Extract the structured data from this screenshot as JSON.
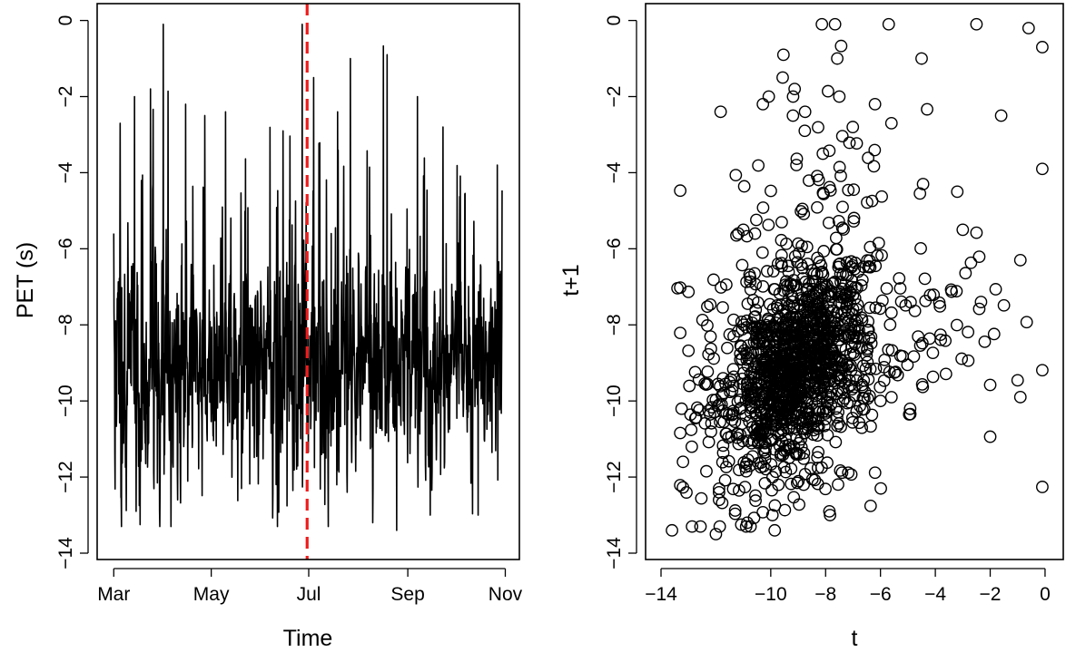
{
  "colors": {
    "line": "#000000",
    "points": "#000000",
    "marker_line": "#ee1c1c",
    "background": "#ffffff"
  },
  "chart_data": [
    {
      "type": "line",
      "xlabel": "Time",
      "ylabel": "PET (s)",
      "x_ticks": [
        "Mar",
        "May",
        "Jul",
        "Sep",
        "Nov"
      ],
      "y_ticks": [
        "0",
        "-2",
        "-4",
        "-6",
        "-8",
        "-10",
        "-12",
        "-14"
      ],
      "xlim": [
        "2021-02-26",
        "2021-11-03"
      ],
      "ylim": [
        -14,
        0.3
      ],
      "grid": false,
      "baseline_mean": -9.0,
      "series": [
        {
          "x_start": "2021-03-01",
          "x_end": "2021-10-30",
          "samples": 1460,
          "peaks": [
            {
              "x": "2021-03-01",
              "y": -5.6
            },
            {
              "x": "2021-03-05",
              "y": -2.7
            },
            {
              "x": "2021-03-14",
              "y": -2.0
            },
            {
              "x": "2021-03-24",
              "y": -1.8
            },
            {
              "x": "2021-04-01",
              "y": -0.1
            },
            {
              "x": "2021-04-15",
              "y": -2.2
            },
            {
              "x": "2021-04-27",
              "y": -2.5
            },
            {
              "x": "2021-05-10",
              "y": -2.4
            },
            {
              "x": "2021-06-15",
              "y": -2.9
            },
            {
              "x": "2021-06-27",
              "y": -0.1
            },
            {
              "x": "2021-07-04",
              "y": -1.5
            },
            {
              "x": "2021-07-19",
              "y": -2.4
            },
            {
              "x": "2021-07-27",
              "y": -1.0
            },
            {
              "x": "2021-08-19",
              "y": -0.9
            },
            {
              "x": "2021-09-07",
              "y": -2.0
            },
            {
              "x": "2021-09-23",
              "y": -2.8
            },
            {
              "x": "2021-10-27",
              "y": -3.8
            }
          ],
          "troughs": [
            {
              "x": "2021-03-15",
              "y": -12.9
            },
            {
              "x": "2021-04-10",
              "y": -12.6
            },
            {
              "x": "2021-05-20",
              "y": -12.3
            },
            {
              "x": "2021-07-25",
              "y": -12.4
            },
            {
              "x": "2021-08-10",
              "y": -13.2
            },
            {
              "x": "2021-08-25",
              "y": -13.4
            },
            {
              "x": "2021-09-15",
              "y": -13.0
            },
            {
              "x": "2021-10-15",
              "y": -13.0
            }
          ]
        }
      ],
      "vline": {
        "x": "2021-06-30",
        "style": "dashed"
      }
    },
    {
      "type": "scatter",
      "xlabel": "t",
      "ylabel": "t+1",
      "x_ticks": [
        "-14",
        "-10",
        "-8",
        "-6",
        "-4",
        "-2",
        "0"
      ],
      "y_ticks": [
        "0",
        "-2",
        "-4",
        "-6",
        "-8",
        "-10",
        "-12",
        "-14"
      ],
      "xlim": [
        -14,
        0.3
      ],
      "ylim": [
        -14,
        0.3
      ],
      "grid": false,
      "marker": "open-circle",
      "n_points": 1459,
      "approx_relation": "y ≈ x",
      "notable_points": [
        [
          -13.6,
          -13.4
        ],
        [
          -13.2,
          -11.6
        ],
        [
          -12.0,
          -13.5
        ],
        [
          -11.0,
          -5.5
        ],
        [
          -10.3,
          -6.1
        ],
        [
          -9.6,
          -5.3
        ],
        [
          -8.1,
          -3.5
        ],
        [
          -7.5,
          -2.0
        ],
        [
          -6.2,
          -2.2
        ],
        [
          -5.7,
          -0.1
        ],
        [
          -3.0,
          -5.5
        ],
        [
          -2.5,
          -0.1
        ],
        [
          -1.6,
          -2.5
        ],
        [
          -0.9,
          -6.3
        ],
        [
          -0.6,
          -0.2
        ],
        [
          -0.1,
          -3.9
        ],
        [
          -0.1,
          -0.7
        ],
        [
          -11.5,
          -9.5
        ],
        [
          -8.8,
          -12.2
        ],
        [
          -6.0,
          -10.0
        ],
        [
          -4.5,
          -1.0
        ],
        [
          -3.2,
          -4.5
        ]
      ]
    }
  ]
}
